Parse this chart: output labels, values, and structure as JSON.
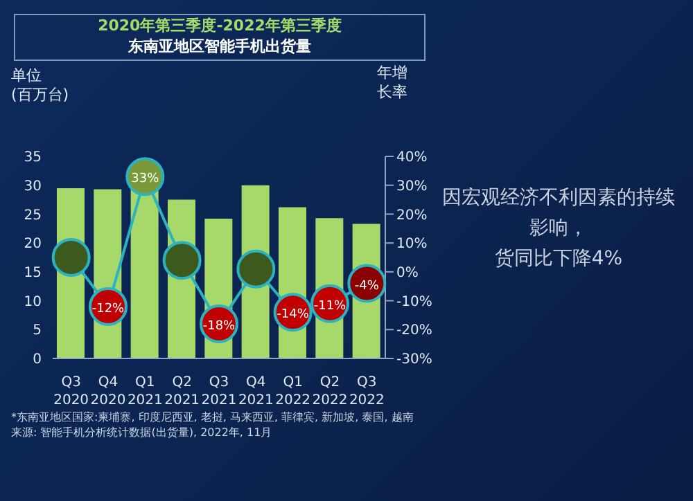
{
  "chart_data": {
    "type": "bar",
    "title": "2020年第三季度-2022年第三季度",
    "subtitle": "东南亚地区智能手机出货量",
    "ylabel": "单位\n(百万台)",
    "y2label": "年增长率",
    "categories": [
      "Q3\n2020",
      "Q4\n2020",
      "Q1\n2021",
      "Q2\n2021",
      "Q3\n2021",
      "Q4\n2021",
      "Q1\n2022",
      "Q2\n2022",
      "Q3\n2022"
    ],
    "series": [
      {
        "color": "#a6d96a",
        "values": [
          29.5,
          29.3,
          29.5,
          27.5,
          24.2,
          30,
          26.2,
          24.3,
          23.3
        ]
      },
      {
        "type": "line",
        "axis": "y2",
        "color": "#2bb3c0",
        "values": [
          5,
          -12,
          33,
          4,
          -18,
          1,
          -14,
          -11,
          -4
        ],
        "colors": [
          "#3d5a1e",
          "#c00000",
          "#7a9a3a",
          "#3d5a1e",
          "#c00000",
          "#3d5a1e",
          "#c00000",
          "#c00000",
          "#8b0000"
        ],
        "value_labels": [
          null,
          "-12%",
          "33%",
          null,
          "-18%",
          null,
          "-14%",
          "-11%",
          "-4%"
        ]
      }
    ],
    "ylim": [
      0,
      35
    ],
    "yticks": [
      0,
      5,
      10,
      15,
      20,
      25,
      30,
      35
    ],
    "y2lim": [
      -30,
      40
    ],
    "y2ticks": [
      {
        "value": -30,
        "label": "-30%"
      },
      {
        "value": -20,
        "label": "-20%"
      },
      {
        "value": -10,
        "label": "-10%"
      },
      {
        "value": 0,
        "label": "0%"
      },
      {
        "value": 10,
        "label": "10%"
      },
      {
        "value": 20,
        "label": "20%"
      },
      {
        "value": 30,
        "label": "30%"
      },
      {
        "value": 40,
        "label": "40%"
      }
    ],
    "grid": false,
    "legend": false,
    "marker": "circle",
    "annotations": [
      "因宏观经济不利因素的持续影响，",
      "货同比下降4%",
      "*东南亚地区国家:柬埔寨, 印度尼西亚, 老挝, 马来西亚, 菲律宾, 新加坡, 泰国, 越南",
      "来源: 智能手机分析统计数据(出货量), 2022年, 11月"
    ]
  }
}
